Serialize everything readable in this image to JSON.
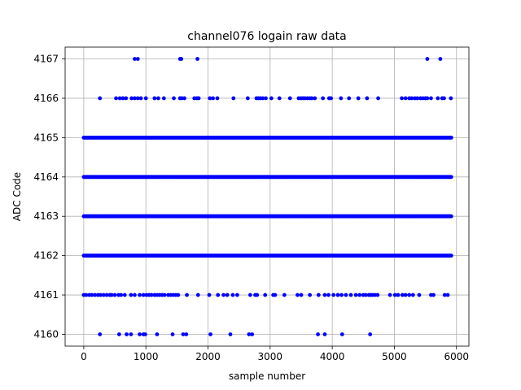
{
  "chart_data": {
    "type": "scatter",
    "title": "channel076 logain raw data",
    "xlabel": "sample number",
    "ylabel": "ADC Code",
    "xlim": [
      -300,
      6200
    ],
    "ylim": [
      4159.7,
      4167.3
    ],
    "xticks": [
      0,
      1000,
      2000,
      3000,
      4000,
      5000,
      6000
    ],
    "yticks": [
      4160,
      4161,
      4162,
      4163,
      4164,
      4165,
      4166,
      4167
    ],
    "grid": true,
    "marker_color": "#0000ff",
    "n_samples": 5940,
    "levels": [
      {
        "y": 4160,
        "x": [
          260,
          570,
          690,
          760,
          900,
          960,
          990,
          1180,
          1430,
          1600,
          1650,
          2040,
          2360,
          2660,
          2710,
          3770,
          3880,
          4160,
          4610
        ]
      },
      {
        "y": 4161,
        "x": [
          0,
          40,
          90,
          130,
          180,
          230,
          270,
          320,
          370,
          420,
          450,
          500,
          560,
          600,
          660,
          760,
          820,
          900,
          960,
          1010,
          1050,
          1090,
          1140,
          1180,
          1220,
          1260,
          1300,
          1360,
          1400,
          1440,
          1480,
          1520,
          1660,
          1840,
          2020,
          2160,
          2250,
          2310,
          2400,
          2470,
          2680,
          2760,
          2790,
          2920,
          3050,
          3080,
          3230,
          3440,
          3500,
          3640,
          3780,
          3880,
          3940,
          4020,
          4090,
          4150,
          4220,
          4300,
          4380,
          4440,
          4500,
          4540,
          4590,
          4620,
          4650,
          4690,
          4730,
          4930,
          5010,
          5060,
          5130,
          5180,
          5240,
          5300,
          5400,
          5590,
          5630,
          5810,
          5860
        ]
      },
      {
        "y": 4166,
        "x": [
          260,
          520,
          580,
          630,
          680,
          770,
          820,
          870,
          920,
          1000,
          1140,
          1200,
          1290,
          1450,
          1550,
          1580,
          1620,
          1780,
          1820,
          1850,
          2030,
          2080,
          2150,
          2410,
          2640,
          2780,
          2810,
          2840,
          2880,
          2930,
          3020,
          3150,
          3320,
          3460,
          3500,
          3530,
          3560,
          3600,
          3640,
          3670,
          3720,
          3850,
          3950,
          3980,
          4140,
          4270,
          4420,
          4560,
          4740,
          5120,
          5180,
          5240,
          5280,
          5330,
          5370,
          5420,
          5460,
          5500,
          5530,
          5590,
          5700,
          5770,
          5800,
          5910
        ]
      },
      {
        "y": 4167,
        "x": [
          820,
          870,
          1550,
          1570,
          1830,
          5530,
          5740
        ]
      }
    ],
    "dense_levels": [
      {
        "y": 4162,
        "x_range": [
          0,
          5920
        ]
      },
      {
        "y": 4163,
        "x_range": [
          0,
          5920
        ]
      },
      {
        "y": 4164,
        "x_range": [
          0,
          5920
        ]
      },
      {
        "y": 4165,
        "x_range": [
          0,
          5920
        ]
      }
    ]
  }
}
